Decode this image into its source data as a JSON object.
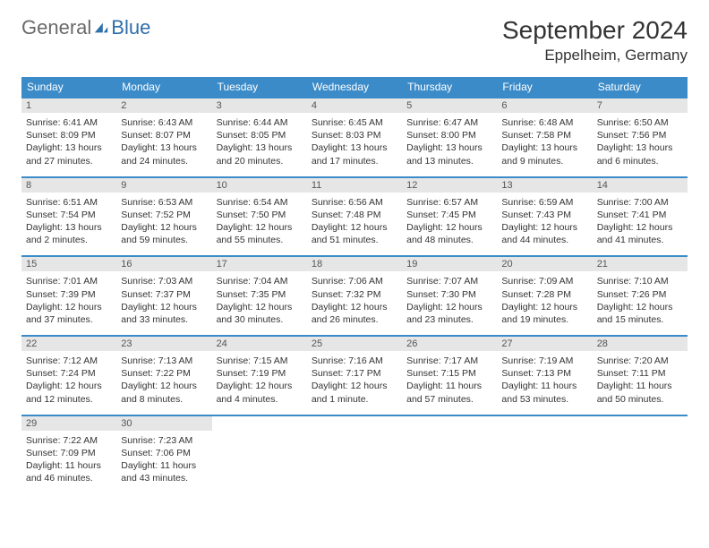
{
  "brand": {
    "part1": "General",
    "part2": "Blue"
  },
  "title": "September 2024",
  "location": "Eppelheim, Germany",
  "weekday_headers": [
    "Sunday",
    "Monday",
    "Tuesday",
    "Wednesday",
    "Thursday",
    "Friday",
    "Saturday"
  ],
  "colors": {
    "header_bg": "#3b8bc9",
    "date_strip_bg": "#e6e6e6",
    "text": "#333333",
    "logo_gray": "#6a6a6a",
    "logo_blue": "#2f6fab"
  },
  "days": [
    {
      "n": "1",
      "sunrise": "Sunrise: 6:41 AM",
      "sunset": "Sunset: 8:09 PM",
      "daylight": "Daylight: 13 hours and 27 minutes."
    },
    {
      "n": "2",
      "sunrise": "Sunrise: 6:43 AM",
      "sunset": "Sunset: 8:07 PM",
      "daylight": "Daylight: 13 hours and 24 minutes."
    },
    {
      "n": "3",
      "sunrise": "Sunrise: 6:44 AM",
      "sunset": "Sunset: 8:05 PM",
      "daylight": "Daylight: 13 hours and 20 minutes."
    },
    {
      "n": "4",
      "sunrise": "Sunrise: 6:45 AM",
      "sunset": "Sunset: 8:03 PM",
      "daylight": "Daylight: 13 hours and 17 minutes."
    },
    {
      "n": "5",
      "sunrise": "Sunrise: 6:47 AM",
      "sunset": "Sunset: 8:00 PM",
      "daylight": "Daylight: 13 hours and 13 minutes."
    },
    {
      "n": "6",
      "sunrise": "Sunrise: 6:48 AM",
      "sunset": "Sunset: 7:58 PM",
      "daylight": "Daylight: 13 hours and 9 minutes."
    },
    {
      "n": "7",
      "sunrise": "Sunrise: 6:50 AM",
      "sunset": "Sunset: 7:56 PM",
      "daylight": "Daylight: 13 hours and 6 minutes."
    },
    {
      "n": "8",
      "sunrise": "Sunrise: 6:51 AM",
      "sunset": "Sunset: 7:54 PM",
      "daylight": "Daylight: 13 hours and 2 minutes."
    },
    {
      "n": "9",
      "sunrise": "Sunrise: 6:53 AM",
      "sunset": "Sunset: 7:52 PM",
      "daylight": "Daylight: 12 hours and 59 minutes."
    },
    {
      "n": "10",
      "sunrise": "Sunrise: 6:54 AM",
      "sunset": "Sunset: 7:50 PM",
      "daylight": "Daylight: 12 hours and 55 minutes."
    },
    {
      "n": "11",
      "sunrise": "Sunrise: 6:56 AM",
      "sunset": "Sunset: 7:48 PM",
      "daylight": "Daylight: 12 hours and 51 minutes."
    },
    {
      "n": "12",
      "sunrise": "Sunrise: 6:57 AM",
      "sunset": "Sunset: 7:45 PM",
      "daylight": "Daylight: 12 hours and 48 minutes."
    },
    {
      "n": "13",
      "sunrise": "Sunrise: 6:59 AM",
      "sunset": "Sunset: 7:43 PM",
      "daylight": "Daylight: 12 hours and 44 minutes."
    },
    {
      "n": "14",
      "sunrise": "Sunrise: 7:00 AM",
      "sunset": "Sunset: 7:41 PM",
      "daylight": "Daylight: 12 hours and 41 minutes."
    },
    {
      "n": "15",
      "sunrise": "Sunrise: 7:01 AM",
      "sunset": "Sunset: 7:39 PM",
      "daylight": "Daylight: 12 hours and 37 minutes."
    },
    {
      "n": "16",
      "sunrise": "Sunrise: 7:03 AM",
      "sunset": "Sunset: 7:37 PM",
      "daylight": "Daylight: 12 hours and 33 minutes."
    },
    {
      "n": "17",
      "sunrise": "Sunrise: 7:04 AM",
      "sunset": "Sunset: 7:35 PM",
      "daylight": "Daylight: 12 hours and 30 minutes."
    },
    {
      "n": "18",
      "sunrise": "Sunrise: 7:06 AM",
      "sunset": "Sunset: 7:32 PM",
      "daylight": "Daylight: 12 hours and 26 minutes."
    },
    {
      "n": "19",
      "sunrise": "Sunrise: 7:07 AM",
      "sunset": "Sunset: 7:30 PM",
      "daylight": "Daylight: 12 hours and 23 minutes."
    },
    {
      "n": "20",
      "sunrise": "Sunrise: 7:09 AM",
      "sunset": "Sunset: 7:28 PM",
      "daylight": "Daylight: 12 hours and 19 minutes."
    },
    {
      "n": "21",
      "sunrise": "Sunrise: 7:10 AM",
      "sunset": "Sunset: 7:26 PM",
      "daylight": "Daylight: 12 hours and 15 minutes."
    },
    {
      "n": "22",
      "sunrise": "Sunrise: 7:12 AM",
      "sunset": "Sunset: 7:24 PM",
      "daylight": "Daylight: 12 hours and 12 minutes."
    },
    {
      "n": "23",
      "sunrise": "Sunrise: 7:13 AM",
      "sunset": "Sunset: 7:22 PM",
      "daylight": "Daylight: 12 hours and 8 minutes."
    },
    {
      "n": "24",
      "sunrise": "Sunrise: 7:15 AM",
      "sunset": "Sunset: 7:19 PM",
      "daylight": "Daylight: 12 hours and 4 minutes."
    },
    {
      "n": "25",
      "sunrise": "Sunrise: 7:16 AM",
      "sunset": "Sunset: 7:17 PM",
      "daylight": "Daylight: 12 hours and 1 minute."
    },
    {
      "n": "26",
      "sunrise": "Sunrise: 7:17 AM",
      "sunset": "Sunset: 7:15 PM",
      "daylight": "Daylight: 11 hours and 57 minutes."
    },
    {
      "n": "27",
      "sunrise": "Sunrise: 7:19 AM",
      "sunset": "Sunset: 7:13 PM",
      "daylight": "Daylight: 11 hours and 53 minutes."
    },
    {
      "n": "28",
      "sunrise": "Sunrise: 7:20 AM",
      "sunset": "Sunset: 7:11 PM",
      "daylight": "Daylight: 11 hours and 50 minutes."
    },
    {
      "n": "29",
      "sunrise": "Sunrise: 7:22 AM",
      "sunset": "Sunset: 7:09 PM",
      "daylight": "Daylight: 11 hours and 46 minutes."
    },
    {
      "n": "30",
      "sunrise": "Sunrise: 7:23 AM",
      "sunset": "Sunset: 7:06 PM",
      "daylight": "Daylight: 11 hours and 43 minutes."
    }
  ]
}
